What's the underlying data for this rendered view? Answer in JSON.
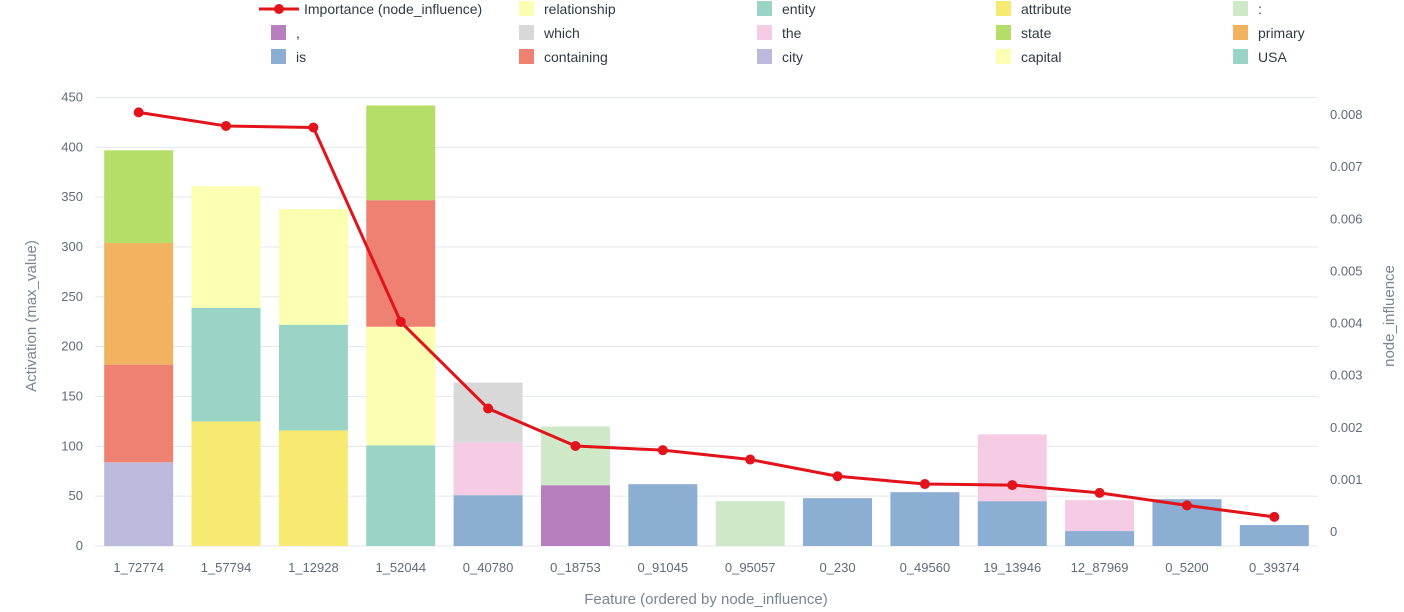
{
  "chart_data": {
    "type": "bar",
    "stacked": true,
    "categories": [
      "1_72774",
      "1_57794",
      "1_12928",
      "1_52044",
      "0_40780",
      "0_18753",
      "0_91045",
      "0_95057",
      "0_230",
      "0_49560",
      "19_13946",
      "12_87969",
      "0_5200",
      "0_39374"
    ],
    "xlabel": "Feature (ordered by node_influence)",
    "ylabel": "Activation (max_value)",
    "y2label": "node_influence",
    "ylim": [
      0,
      450
    ],
    "y2lim": [
      0,
      0.008
    ],
    "yticks": [
      "0",
      "50",
      "100",
      "150",
      "200",
      "250",
      "300",
      "350",
      "400",
      "450"
    ],
    "y2ticks": [
      "0",
      "0.001",
      "0.002",
      "0.003",
      "0.004",
      "0.005",
      "0.006",
      "0.007",
      "0.008"
    ],
    "grid": true,
    "legend_position": "top",
    "legend_order": [
      "Importance (node_influence)",
      "relationship",
      "entity",
      "attribute",
      ":",
      ",",
      "which",
      "the",
      "state",
      "primary",
      "is",
      "containing",
      "city",
      "capital",
      "USA"
    ],
    "tokens": [
      {
        "name": "relationship",
        "color": "#fbffb2"
      },
      {
        "name": "entity",
        "color": "#99d4c7"
      },
      {
        "name": "attribute",
        "color": "#f7ea72"
      },
      {
        "name": ":",
        "color": "#cfe9c8"
      },
      {
        "name": ",",
        "color": "#b77fbe"
      },
      {
        "name": "which",
        "color": "#d8d8d8"
      },
      {
        "name": "the",
        "color": "#f6cce4"
      },
      {
        "name": "state",
        "color": "#b5de68"
      },
      {
        "name": "primary",
        "color": "#f2b360"
      },
      {
        "name": "is",
        "color": "#8caed3"
      },
      {
        "name": "containing",
        "color": "#ef8173"
      },
      {
        "name": "city",
        "color": "#bdb9da"
      },
      {
        "name": "capital",
        "color": "#fbffb2"
      },
      {
        "name": "USA",
        "color": "#99d4c7"
      }
    ],
    "stacks": [
      [
        {
          "token": "city",
          "value": 84
        },
        {
          "token": "containing",
          "value": 98
        },
        {
          "token": "primary",
          "value": 122
        },
        {
          "token": "state",
          "value": 93
        }
      ],
      [
        {
          "token": "attribute",
          "value": 125
        },
        {
          "token": "entity",
          "value": 114
        },
        {
          "token": "relationship",
          "value": 122
        }
      ],
      [
        {
          "token": "attribute",
          "value": 116
        },
        {
          "token": "entity",
          "value": 106
        },
        {
          "token": "relationship",
          "value": 116
        }
      ],
      [
        {
          "token": "USA",
          "value": 101
        },
        {
          "token": "capital",
          "value": 119
        },
        {
          "token": "containing",
          "value": 127
        },
        {
          "token": "state",
          "value": 95
        }
      ],
      [
        {
          "token": "is",
          "value": 51
        },
        {
          "token": "the",
          "value": 53
        },
        {
          "token": "which",
          "value": 60
        }
      ],
      [
        {
          "token": ",",
          "value": 61
        },
        {
          "token": ":",
          "value": 59
        }
      ],
      [
        {
          "token": "is",
          "value": 62
        }
      ],
      [
        {
          "token": ":",
          "value": 45
        }
      ],
      [
        {
          "token": "is",
          "value": 48
        }
      ],
      [
        {
          "token": "is",
          "value": 54
        }
      ],
      [
        {
          "token": "is",
          "value": 45
        },
        {
          "token": "the",
          "value": 67
        }
      ],
      [
        {
          "token": "is",
          "value": 15
        },
        {
          "token": "the",
          "value": 31
        }
      ],
      [
        {
          "token": "is",
          "value": 47
        }
      ],
      [
        {
          "token": "is",
          "value": 21
        }
      ]
    ],
    "line": {
      "name": "Importance (node_influence)",
      "color": "#e3131b",
      "values": [
        0.00805,
        0.00779,
        0.00776,
        0.00403,
        0.00237,
        0.00165,
        0.00157,
        0.00139,
        0.00107,
        0.00092,
        0.0009,
        0.00075,
        0.00051,
        0.00029
      ]
    }
  }
}
